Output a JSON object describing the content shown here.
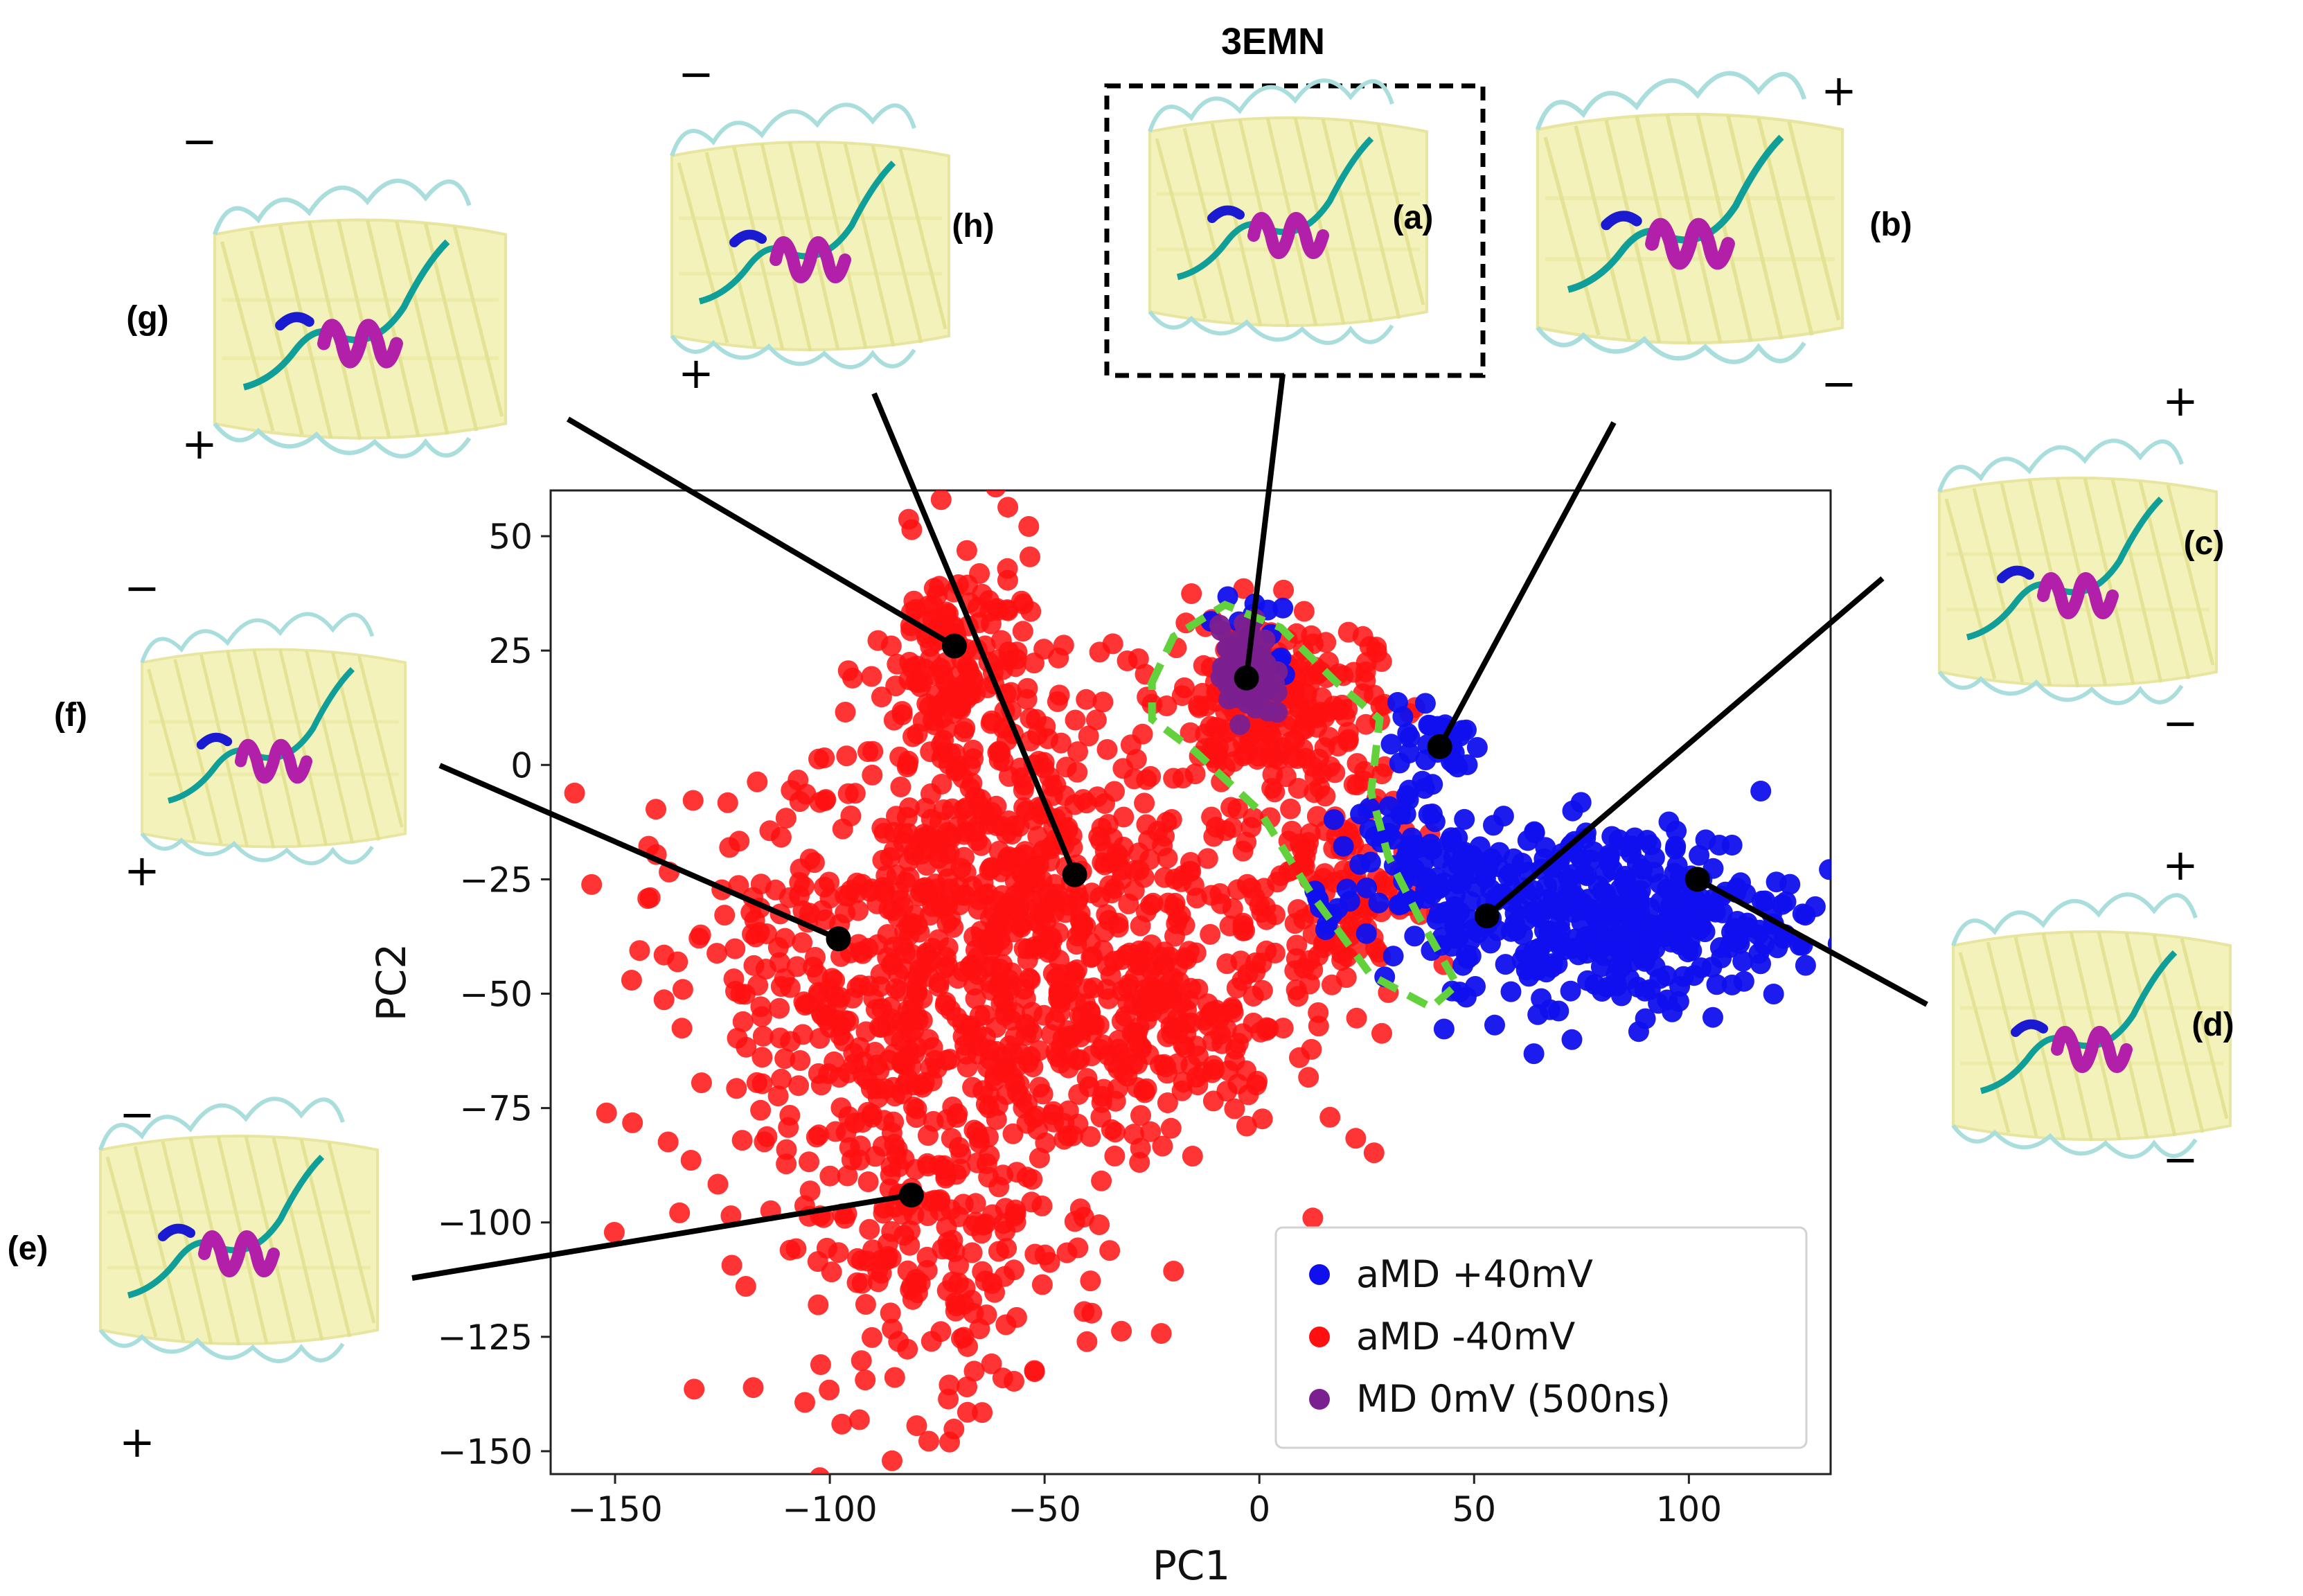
{
  "chart_data": {
    "type": "scatter",
    "title": "3EMN",
    "xlabel": "PC1",
    "ylabel": "PC2",
    "xlim": [
      -165,
      133
    ],
    "ylim": [
      -155,
      60
    ],
    "xticks": [
      -150,
      -100,
      -50,
      0,
      50,
      100
    ],
    "yticks": [
      50,
      25,
      0,
      -25,
      -50,
      -75,
      -100,
      -125,
      -150
    ],
    "xtick_labels": [
      "−150",
      "−100",
      "−50",
      "0",
      "50",
      "100"
    ],
    "ytick_labels": [
      "50",
      "25",
      "0",
      "−25",
      "−50",
      "−75",
      "−100",
      "−125",
      "−150"
    ],
    "legend_position": "lower-right",
    "series": [
      {
        "name": "aMD +40mV",
        "color": "#1010ee",
        "clusters": [
          {
            "cx": 85,
            "cy": -33,
            "sx": 20,
            "sy": 10,
            "n": 340
          },
          {
            "cx": 45,
            "cy": -28,
            "sx": 10,
            "sy": 10,
            "n": 90
          },
          {
            "cx": 42,
            "cy": 5,
            "sx": 5,
            "sy": 4,
            "n": 30
          },
          {
            "cx": 30,
            "cy": -15,
            "sx": 6,
            "sy": 8,
            "n": 30
          },
          {
            "cx": -2,
            "cy": 28,
            "sx": 5,
            "sy": 5,
            "n": 18
          },
          {
            "cx": 15,
            "cy": -33,
            "sx": 5,
            "sy": 3,
            "n": 10
          }
        ]
      },
      {
        "name": "aMD -40mV",
        "color": "#ff1010",
        "clusters": [
          {
            "cx": -55,
            "cy": -35,
            "sx": 30,
            "sy": 25,
            "n": 700
          },
          {
            "cx": -90,
            "cy": -50,
            "sx": 25,
            "sy": 22,
            "n": 250
          },
          {
            "cx": -75,
            "cy": -105,
            "sx": 20,
            "sy": 18,
            "n": 220
          },
          {
            "cx": -70,
            "cy": 20,
            "sx": 10,
            "sy": 14,
            "n": 160
          },
          {
            "cx": 2,
            "cy": 15,
            "sx": 12,
            "sy": 9,
            "n": 190
          },
          {
            "cx": 15,
            "cy": -25,
            "sx": 10,
            "sy": 18,
            "n": 160
          },
          {
            "cx": -20,
            "cy": -60,
            "sx": 15,
            "sy": 10,
            "n": 120
          }
        ]
      },
      {
        "name": "MD 0mV (500ns)",
        "color": "#7b2090",
        "clusters": [
          {
            "cx": -3,
            "cy": 20,
            "sx": 3,
            "sy": 5,
            "n": 90
          }
        ]
      }
    ],
    "green_region_outline_data": [
      [
        -25,
        18
      ],
      [
        -20,
        28
      ],
      [
        -8,
        35
      ],
      [
        5,
        30
      ],
      [
        18,
        18
      ],
      [
        28,
        10
      ],
      [
        26,
        -6
      ],
      [
        30,
        -20
      ],
      [
        37,
        -33
      ],
      [
        46,
        -48
      ],
      [
        40,
        -53
      ],
      [
        26,
        -46
      ],
      [
        12,
        -28
      ],
      [
        0,
        -10
      ],
      [
        -15,
        3
      ],
      [
        -25,
        10
      ],
      [
        -25,
        18
      ]
    ],
    "annotations": [
      {
        "label": "(a)",
        "x": -3,
        "y": 19,
        "signs": [
          "",
          ""
        ]
      },
      {
        "label": "(b)",
        "x": 42,
        "y": 4,
        "signs": [
          "+",
          "−"
        ]
      },
      {
        "label": "(c)",
        "x": 53,
        "y": -33,
        "signs": [
          "+",
          "−"
        ]
      },
      {
        "label": "(d)",
        "x": 102,
        "y": -25,
        "signs": [
          "+",
          "−"
        ]
      },
      {
        "label": "(e)",
        "x": -81,
        "y": -94,
        "signs": [
          "−",
          "+"
        ]
      },
      {
        "label": "(f)",
        "x": -98,
        "y": -38,
        "signs": [
          "−",
          "+"
        ]
      },
      {
        "label": "(g)",
        "x": -71,
        "y": 26,
        "signs": [
          "−",
          "+"
        ]
      },
      {
        "label": "(h)",
        "x": -43,
        "y": -24,
        "signs": [
          "−",
          "+"
        ]
      }
    ]
  },
  "colors": {
    "barrel_fill": "#f3f2b8",
    "barrel_stroke": "#e6e49a",
    "loop": "#a9dedd",
    "helix": "#b21fa8",
    "coil": "#0f9e98",
    "nterm": "#1a1ad0",
    "membrane_tag": "#c0b8ee"
  }
}
